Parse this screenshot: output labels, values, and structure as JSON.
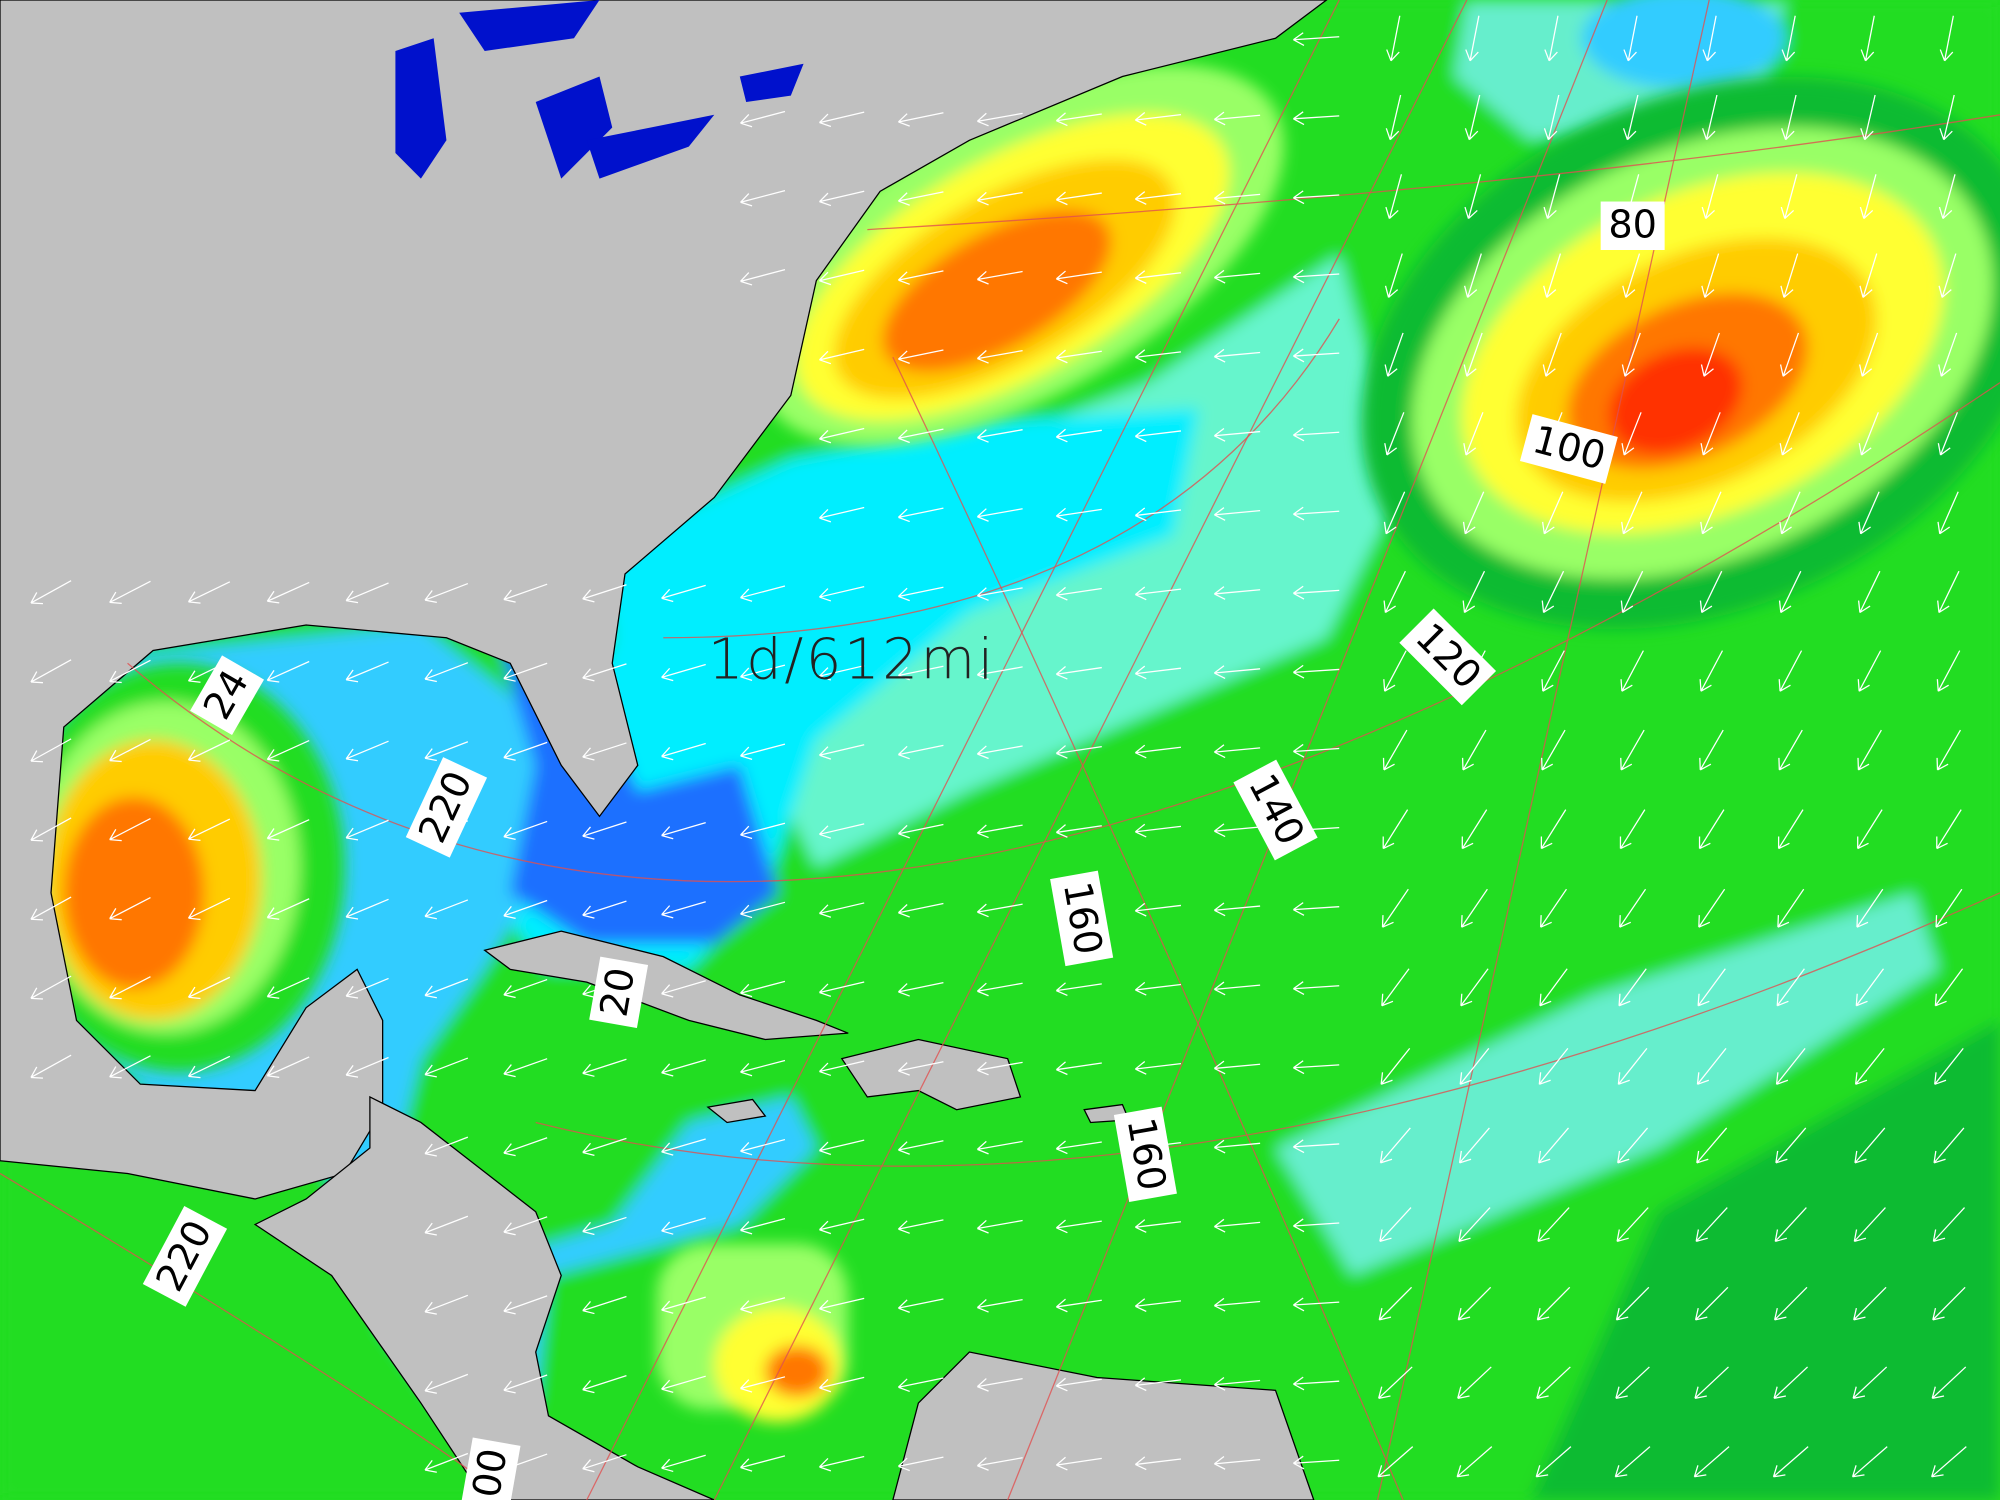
{
  "map": {
    "distance_label": "1d/612mi",
    "bearing_labels": [
      "80",
      "100",
      "120",
      "140",
      "160",
      "160",
      "220",
      "24",
      "20",
      "220",
      "00"
    ]
  }
}
